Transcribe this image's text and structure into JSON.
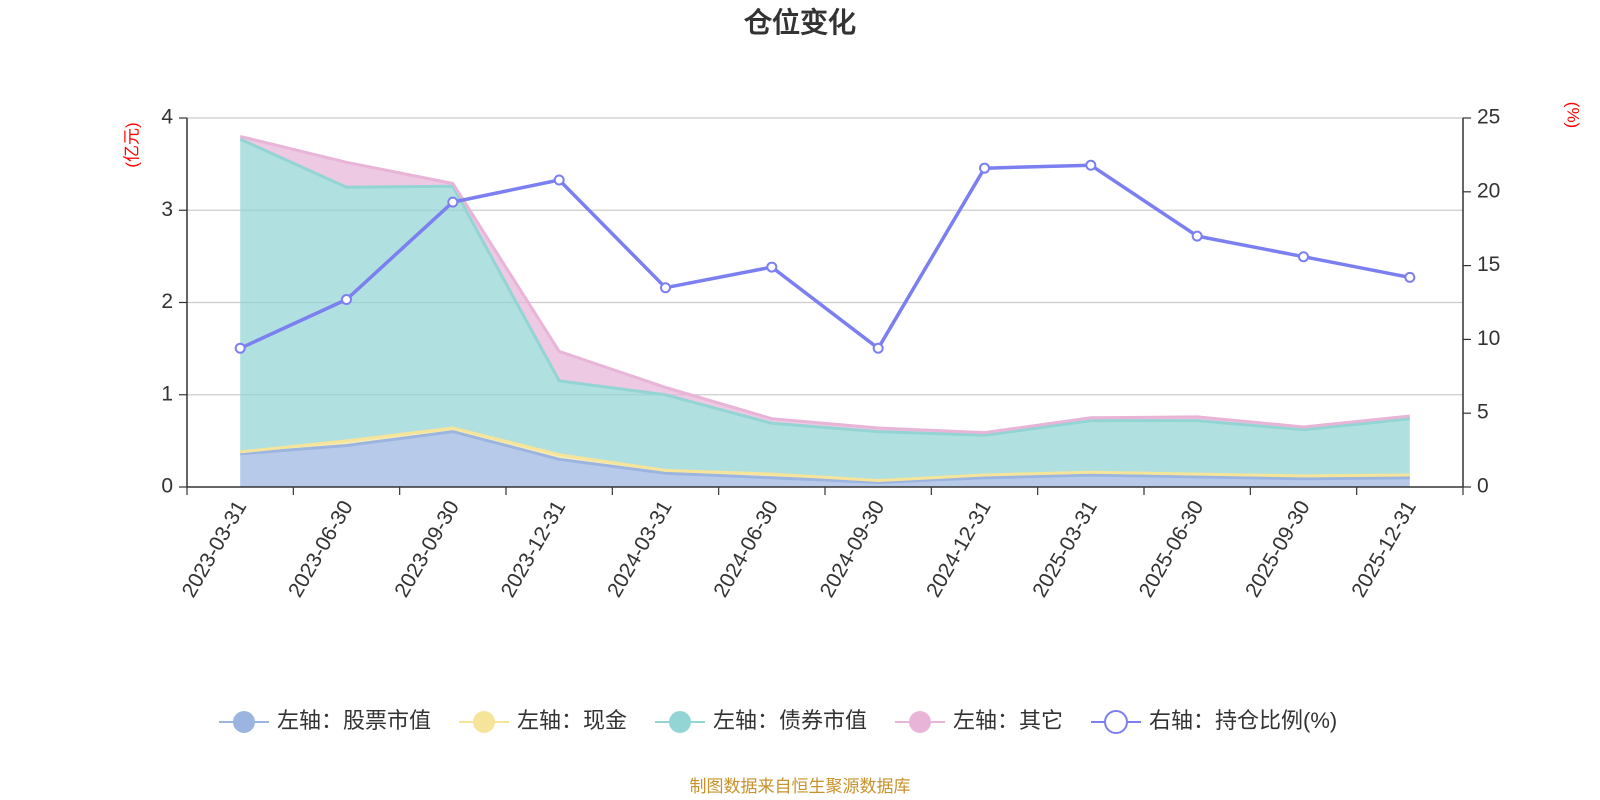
{
  "title": "仓位变化",
  "source": "制图数据来自恒生聚源数据库",
  "colors": {
    "stock": "#9bb5e0",
    "cash": "#f5e49a",
    "bond": "#93d4d4",
    "other": "#e8b4d8",
    "ratio": "#7b7ff0",
    "unit": "#ff0000",
    "source": "#c8922b"
  },
  "chart_data": {
    "type": "area",
    "categories": [
      "2023-03-31",
      "2023-06-30",
      "2023-09-30",
      "2023-12-31",
      "2024-03-31",
      "2024-06-30",
      "2024-09-30",
      "2024-12-31",
      "2025-03-31",
      "2025-06-30",
      "2025-09-30",
      "2025-12-31"
    ],
    "left_axis": {
      "unit": "(亿元)",
      "ylim": [
        0,
        4
      ],
      "ticks": [
        "0",
        "1",
        "2",
        "3",
        "4"
      ]
    },
    "right_axis": {
      "unit": "(%)",
      "ylim": [
        0,
        25
      ],
      "ticks": [
        "0",
        "5",
        "10",
        "15",
        "20",
        "25"
      ]
    },
    "stacked_series": [
      {
        "name": "左轴：股票市值",
        "key": "stock",
        "values": [
          0.36,
          0.45,
          0.6,
          0.3,
          0.15,
          0.1,
          0.05,
          0.1,
          0.13,
          0.11,
          0.09,
          0.1
        ]
      },
      {
        "name": "左轴：现金",
        "key": "cash",
        "values": [
          0.02,
          0.05,
          0.04,
          0.05,
          0.03,
          0.04,
          0.02,
          0.03,
          0.03,
          0.03,
          0.03,
          0.03
        ]
      },
      {
        "name": "左轴：债券市值",
        "key": "bond",
        "values": [
          3.39,
          2.75,
          2.62,
          0.8,
          0.82,
          0.55,
          0.53,
          0.43,
          0.56,
          0.58,
          0.5,
          0.61
        ]
      },
      {
        "name": "左轴：其它",
        "key": "other",
        "values": [
          0.03,
          0.27,
          0.03,
          0.32,
          0.08,
          0.05,
          0.04,
          0.03,
          0.03,
          0.04,
          0.03,
          0.03
        ]
      }
    ],
    "line_series": {
      "name": "右轴：持仓比例(%)",
      "key": "ratio",
      "values": [
        9.4,
        12.7,
        19.3,
        20.8,
        13.5,
        14.9,
        9.4,
        21.6,
        21.8,
        17.0,
        15.6,
        14.2
      ]
    },
    "grid": true,
    "legend": "bottom"
  }
}
